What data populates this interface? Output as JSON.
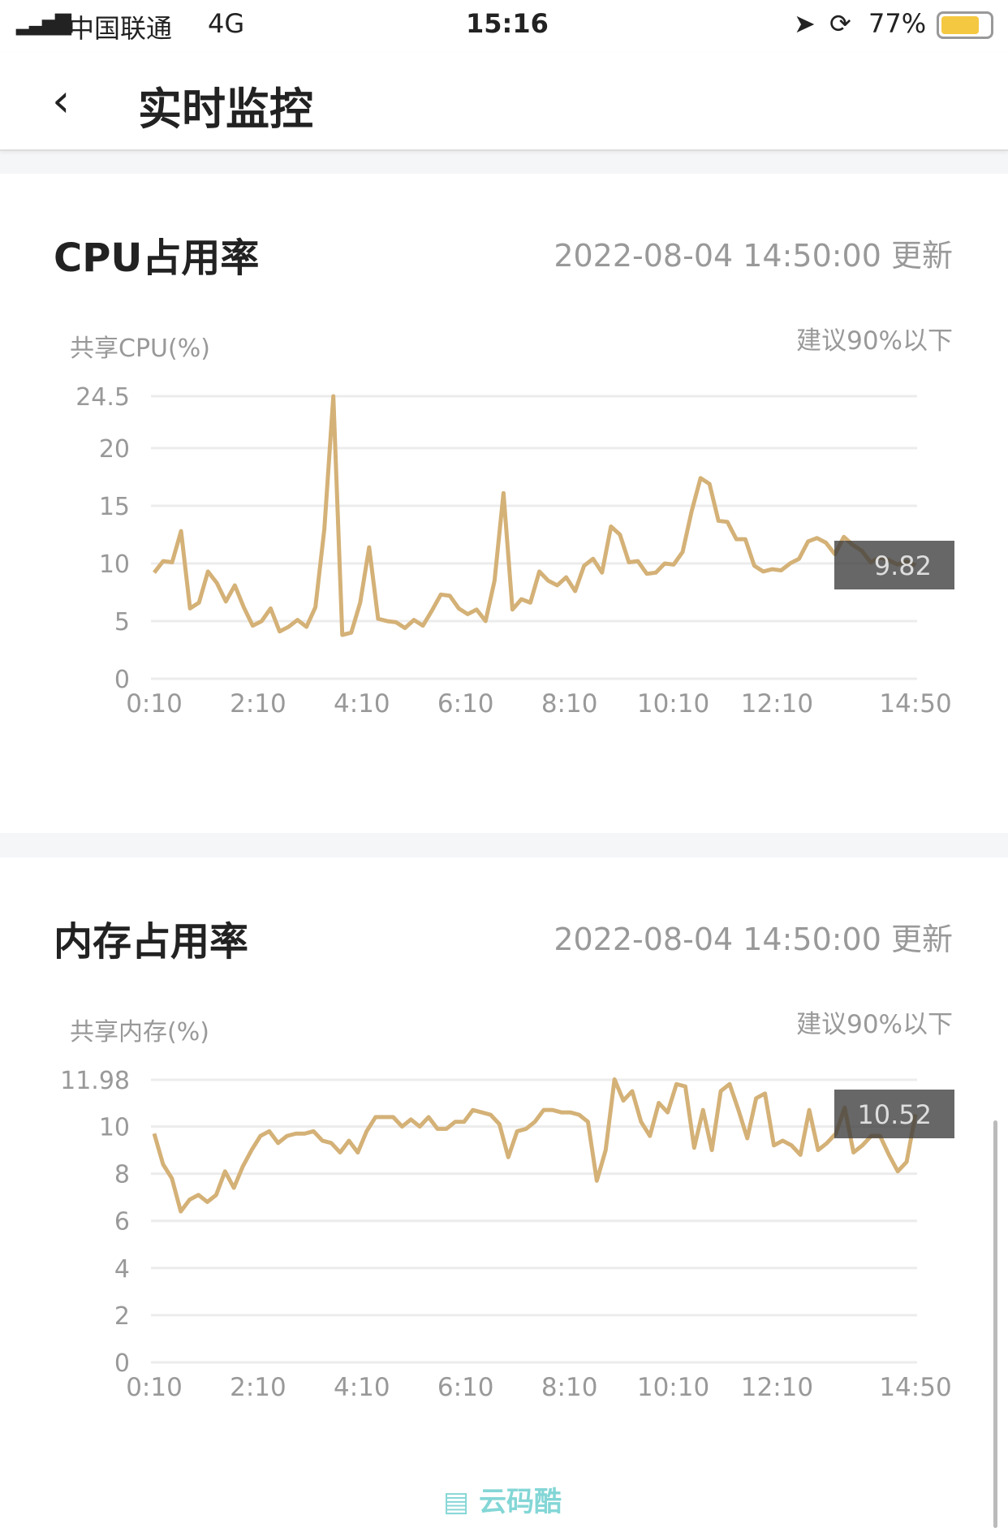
{
  "status_bar": {
    "carrier": "中国联通",
    "network": "4G",
    "time": "15:16",
    "battery": "77%",
    "icons": [
      "signal-icon",
      "location-icon",
      "rotation-lock-icon",
      "battery-icon"
    ]
  },
  "header": {
    "title": "实时监控",
    "back_icon": "chevron-left-icon"
  },
  "cards": [
    {
      "title": "CPU占用率",
      "updated": "2022-08-04 14:50:00 更新",
      "y_label": "共享CPU(%)",
      "hint": "建议90%以下",
      "tooltip": "9.82"
    },
    {
      "title": "内存占用率",
      "updated": "2022-08-04 14:50:00 更新",
      "y_label": "共享内存(%)",
      "hint": "建议90%以下",
      "tooltip": "10.52"
    }
  ],
  "watermark": "云码酷",
  "chart_data": [
    {
      "type": "line",
      "x_ticks": [
        "0:10",
        "2:10",
        "4:10",
        "6:10",
        "8:10",
        "10:10",
        "12:10",
        "14:50"
      ],
      "y_ticks": [
        "0",
        "5",
        "10",
        "15",
        "20",
        "24.5"
      ],
      "ylim": [
        0,
        24.5
      ],
      "xrange": [
        "0:10",
        "14:50"
      ],
      "grid": true,
      "color": "#d4b177",
      "values": [
        9.2,
        10.2,
        10.1,
        12.8,
        6.1,
        6.6,
        9.3,
        8.3,
        6.7,
        8.1,
        6.2,
        4.6,
        5.0,
        6.1,
        4.1,
        4.5,
        5.1,
        4.5,
        6.2,
        13,
        24.5,
        3.8,
        4.0,
        6.6,
        11.4,
        5.2,
        5.0,
        4.9,
        4.4,
        5.1,
        4.6,
        5.9,
        7.3,
        7.2,
        6.1,
        5.6,
        6.0,
        5.0,
        8.5,
        16.1,
        6.0,
        6.9,
        6.6,
        9.3,
        8.5,
        8.1,
        8.8,
        7.6,
        9.8,
        10.4,
        9.2,
        13.2,
        12.5,
        10.1,
        10.2,
        9.1,
        9.2,
        10.0,
        9.9,
        11.0,
        14.5,
        17.4,
        16.9,
        13.7,
        13.6,
        12.1,
        12.1,
        9.8,
        9.3,
        9.5,
        9.4,
        10.0,
        10.4,
        11.9,
        12.2,
        11.8,
        10.8,
        12.3,
        11.6,
        11.1,
        10.1,
        10.5,
        10.3,
        9.9,
        10.2,
        9.82
      ]
    },
    {
      "type": "line",
      "x_ticks": [
        "0:10",
        "2:10",
        "4:10",
        "6:10",
        "8:10",
        "10:10",
        "12:10",
        "14:50"
      ],
      "y_ticks": [
        "0",
        "2",
        "4",
        "6",
        "8",
        "10",
        "11.98"
      ],
      "ylim": [
        0,
        11.98
      ],
      "xrange": [
        "0:10",
        "14:50"
      ],
      "grid": true,
      "color": "#d4b177",
      "values": [
        9.7,
        8.4,
        7.8,
        6.4,
        6.9,
        7.1,
        6.8,
        7.1,
        8.1,
        7.4,
        8.3,
        9.0,
        9.6,
        9.8,
        9.3,
        9.6,
        9.7,
        9.7,
        9.8,
        9.4,
        9.3,
        8.9,
        9.4,
        8.9,
        9.8,
        10.4,
        10.4,
        10.4,
        10.0,
        10.3,
        10.0,
        10.4,
        9.9,
        9.9,
        10.2,
        10.2,
        10.7,
        10.6,
        10.5,
        10.1,
        8.7,
        9.8,
        9.9,
        10.2,
        10.7,
        10.7,
        10.6,
        10.6,
        10.5,
        10.2,
        7.7,
        9.0,
        12.0,
        11.1,
        11.5,
        10.2,
        9.6,
        11.0,
        10.6,
        11.8,
        11.7,
        9.1,
        10.7,
        9.0,
        11.5,
        11.8,
        10.7,
        9.5,
        11.2,
        11.4,
        9.2,
        9.4,
        9.2,
        8.8,
        10.7,
        9.0,
        9.3,
        9.7,
        10.8,
        8.9,
        9.2,
        9.6,
        9.6,
        8.8,
        8.1,
        8.5,
        10.52
      ]
    }
  ]
}
